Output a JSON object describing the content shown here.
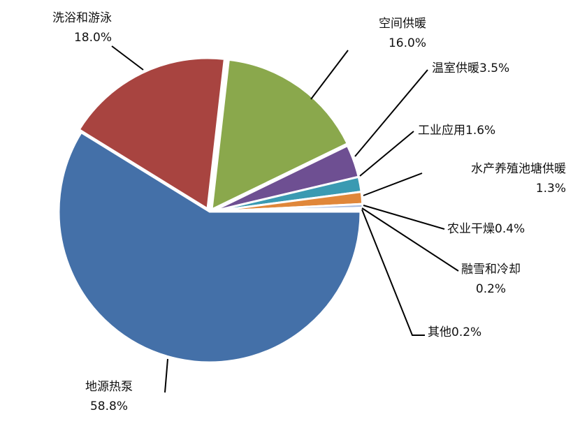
{
  "chart_data": {
    "type": "pie",
    "start_angle": "3 o'clock, clockwise",
    "slices": [
      {
        "label": "地源热泵",
        "value": 58.8,
        "text": "58.8%",
        "color": "#4470a8"
      },
      {
        "label": "洗浴和游泳",
        "value": 18.0,
        "text": "18.0%",
        "color": "#a84440"
      },
      {
        "label": "空间供暖",
        "value": 16.0,
        "text": "16.0%",
        "color": "#8aa84c"
      },
      {
        "label": "温室供暖",
        "value": 3.5,
        "text": "3.5%",
        "color": "#6e4f92"
      },
      {
        "label": "工业应用",
        "value": 1.6,
        "text": "1.6%",
        "color": "#3a9ab2"
      },
      {
        "label": "水产养殖池塘供暖",
        "value": 1.3,
        "text": "1.3%",
        "color": "#e0873a"
      },
      {
        "label": "农业干燥",
        "value": 0.4,
        "text": "0.4%",
        "color": "#a9bde0"
      },
      {
        "label": "融雪和冷却",
        "value": 0.2,
        "text": "0.2%",
        "color": "#e8a8a6"
      },
      {
        "label": "其他",
        "value": 0.2,
        "text": "0.2%",
        "color": "#cfe0b0"
      }
    ]
  }
}
